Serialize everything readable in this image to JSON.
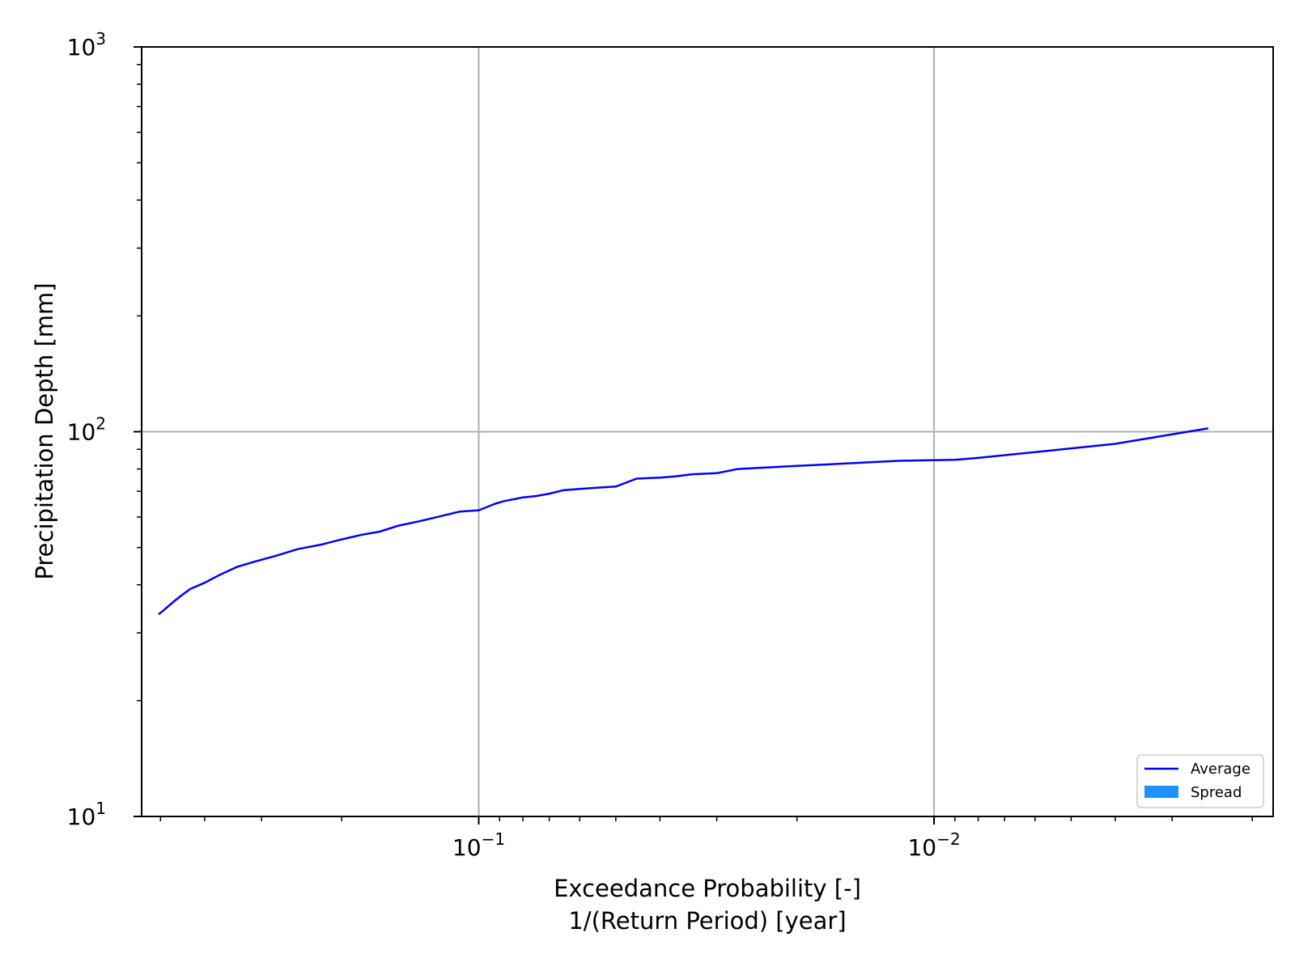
{
  "chart_data": {
    "type": "line",
    "title": "",
    "xlabel_line1": "Exceedance Probability [-]",
    "xlabel_line2": "1/(Return Period) [year]",
    "ylabel": "Precipitation Depth [mm]",
    "x_scale": "log (reversed)",
    "y_scale": "log",
    "xlim": [
      0.55,
      0.0018
    ],
    "ylim": [
      10,
      1000
    ],
    "grid": true,
    "x_ticks": [
      {
        "value": 0.1,
        "base": "10",
        "exp": "−1"
      },
      {
        "value": 0.01,
        "base": "10",
        "exp": "−2"
      }
    ],
    "y_ticks": [
      {
        "value": 10,
        "base": "10",
        "exp": "1"
      },
      {
        "value": 100,
        "base": "10",
        "exp": "2"
      },
      {
        "value": 1000,
        "base": "10",
        "exp": "3"
      }
    ],
    "legend_position": "lower-right",
    "series": [
      {
        "name": "Average",
        "color": "#0000ff",
        "x": [
          0.505,
          0.49,
          0.47,
          0.45,
          0.43,
          0.4,
          0.37,
          0.34,
          0.31,
          0.28,
          0.25,
          0.22,
          0.2,
          0.18,
          0.165,
          0.15,
          0.135,
          0.12,
          0.11,
          0.1,
          0.092,
          0.088,
          0.085,
          0.08,
          0.075,
          0.07,
          0.065,
          0.06,
          0.055,
          0.05,
          0.045,
          0.04,
          0.037,
          0.034,
          0.03,
          0.027,
          0.02,
          0.018,
          0.012,
          0.009,
          0.008,
          0.006,
          0.004,
          0.0025
        ],
        "y": [
          33.5,
          34.5,
          36.0,
          37.5,
          39.0,
          40.5,
          42.5,
          44.5,
          46.0,
          47.5,
          49.5,
          51.0,
          52.5,
          54.0,
          55.0,
          57.0,
          58.5,
          60.5,
          62.0,
          62.5,
          65.0,
          66.0,
          66.5,
          67.5,
          68.0,
          69.0,
          70.5,
          71.0,
          71.5,
          72.0,
          75.5,
          76.0,
          76.5,
          77.5,
          78.0,
          80.0,
          81.5,
          82.0,
          84.0,
          84.5,
          85.5,
          88.5,
          93.0,
          102.0
        ]
      },
      {
        "name": "Spread",
        "color": "#1e90ff",
        "x": [],
        "y_low": [],
        "y_high": []
      }
    ]
  }
}
